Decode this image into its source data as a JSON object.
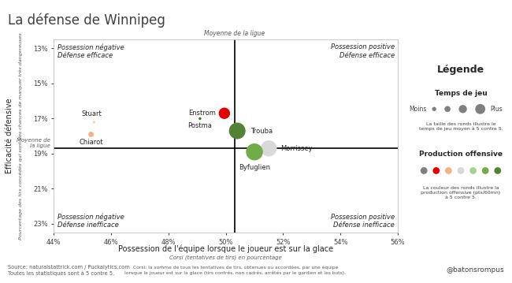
{
  "chart_data": {
    "type": "scatter",
    "title": "La défense de Winnipeg",
    "x_label": "Possession de l'équipe lorsque le joueur est sur la glace",
    "x_sublabel": "Corsi (tentatives de tirs) en pourcentage",
    "y_label": "Efficacité défensive",
    "y_sublabel": "Pourcentage des tirs concédés qui sont des chances de marquer très dangereuses",
    "labels": [
      "Stuart",
      "Chiarot",
      "Enstrom",
      "Postma",
      "Trouba",
      "Morrissey",
      "Byfuglien"
    ],
    "x": [
      45.4,
      45.3,
      49.95,
      49.1,
      50.4,
      51.5,
      51.0
    ],
    "values": [
      17.2,
      17.9,
      16.7,
      17.0,
      17.7,
      18.7,
      18.9
    ],
    "sizes": [
      0.4,
      2,
      9,
      0.5,
      19,
      18,
      20
    ],
    "colors": [
      "#f8cbad",
      "#f4b183",
      "#e50000",
      "#38761d",
      "#548235",
      "#d9d9d9",
      "#70ad47"
    ],
    "xlim": [
      44,
      56
    ],
    "xticks": [
      {
        "value": 44,
        "label": "44%"
      },
      {
        "value": 46,
        "label": "46%"
      },
      {
        "value": 48,
        "label": "48%"
      },
      {
        "value": 50,
        "label": "50%"
      },
      {
        "value": 52,
        "label": "52%"
      },
      {
        "value": 54,
        "label": "54%"
      },
      {
        "value": 56,
        "label": "56%"
      }
    ],
    "ylim": [
      23.5,
      12.5
    ],
    "yticks": [
      {
        "value": 13,
        "label": "13%"
      },
      {
        "value": 15,
        "label": "15%"
      },
      {
        "value": 17,
        "label": "17%"
      },
      {
        "value": 19,
        "label": "19%"
      },
      {
        "value": 21,
        "label": "21%"
      },
      {
        "value": 23,
        "label": "23%"
      }
    ],
    "grid": false,
    "reference_lines": {
      "x": {
        "value": 50.3,
        "label": "Moyenne de la ligue"
      },
      "y": {
        "value": 18.7,
        "label": "Moyenne de\nla ligue"
      }
    },
    "quadrants": {
      "top_left": "Possession négative\nDéfense efficace",
      "top_right": "Possession positive\nDéfense efficace",
      "bottom_left": "Possession négative\nDéfense inefficace",
      "bottom_right": "Possession positive\nDéfense inefficace"
    },
    "legend_box": {
      "title": "Légende",
      "size_title": "Temps de jeu",
      "size_low": "Moins",
      "size_high": "Plus",
      "size_note": "La taille des ronds illustre le\ntemps de jeu moyen à 5 contre 5.",
      "color_title": "Production offensive",
      "colors": [
        "#7f7f7f",
        "#e50000",
        "#f4b183",
        "#d9d9d9",
        "#a9d18e",
        "#70ad47",
        "#548235"
      ],
      "color_note": "La couleur des ronds illustre la\nproduction offensive (pts/60mn)\nà 5 contre 5."
    },
    "footer": {
      "source": "Source: naturalstattrick.com / Puckalytics.com\nToutes les statistiques sont à 5 contre 5.",
      "note": "Corsi: la somme de tous les tentatives de tirs, obtenues ou accordées, par une équipe\nlorsque le joueur est sur la glace (tirs contrés, non cadrés, arrêtés par le gardien et les buts).",
      "credit": "@batonsrompus"
    }
  }
}
